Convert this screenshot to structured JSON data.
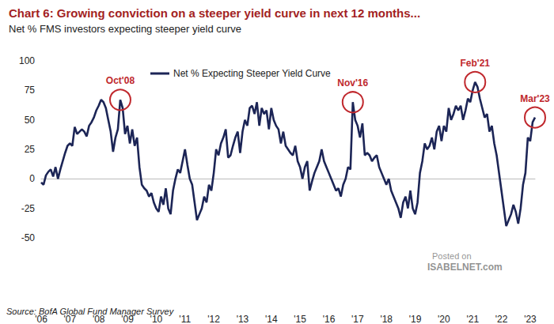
{
  "chart_data": {
    "type": "line",
    "title": "Chart 6: Growing conviction on a steeper yield curve in next 12 months...",
    "subtitle": "Net % FMS investors expecting steeper yield curve",
    "source": "Source: BofA Global Fund Manager Survey",
    "watermark": [
      "Posted on",
      "ISABELNET.com"
    ],
    "categories": [
      "'06",
      null,
      null,
      null,
      null,
      null,
      null,
      null,
      null,
      null,
      null,
      null,
      "'07",
      null,
      null,
      null,
      null,
      null,
      null,
      null,
      null,
      null,
      null,
      null,
      "'08",
      null,
      null,
      null,
      null,
      null,
      null,
      null,
      null,
      null,
      null,
      null,
      "'09",
      null,
      null,
      null,
      null,
      null,
      null,
      null,
      null,
      null,
      null,
      null,
      "'10",
      null,
      null,
      null,
      null,
      null,
      null,
      null,
      null,
      null,
      null,
      null,
      "'11",
      null,
      null,
      null,
      null,
      null,
      null,
      null,
      null,
      null,
      null,
      null,
      "'12",
      null,
      null,
      null,
      null,
      null,
      null,
      null,
      null,
      null,
      null,
      null,
      "'13",
      null,
      null,
      null,
      null,
      null,
      null,
      null,
      null,
      null,
      null,
      null,
      "'14",
      null,
      null,
      null,
      null,
      null,
      null,
      null,
      null,
      null,
      null,
      null,
      "'15",
      null,
      null,
      null,
      null,
      null,
      null,
      null,
      null,
      null,
      null,
      null,
      "'16",
      null,
      null,
      null,
      null,
      null,
      null,
      null,
      null,
      null,
      null,
      null,
      "'17",
      null,
      null,
      null,
      null,
      null,
      null,
      null,
      null,
      null,
      null,
      null,
      "'18",
      null,
      null,
      null,
      null,
      null,
      null,
      null,
      null,
      null,
      null,
      null,
      "'19",
      null,
      null,
      null,
      null,
      null,
      null,
      null,
      null,
      null,
      null,
      null,
      "'20",
      null,
      null,
      null,
      null,
      null,
      null,
      null,
      null,
      null,
      null,
      null,
      "'21",
      null,
      null,
      null,
      null,
      null,
      null,
      null,
      null,
      null,
      null,
      null,
      "'22",
      null,
      null,
      null,
      null,
      null,
      null,
      null,
      null,
      null,
      null,
      null,
      "'23",
      null,
      null
    ],
    "series": [
      {
        "name": "Net % Expecting Steeper Yield Curve",
        "color": "#1c2556",
        "line_style": "solid",
        "values": [
          -3,
          -5,
          3,
          6,
          8,
          2,
          10,
          0,
          8,
          15,
          22,
          28,
          30,
          28,
          44,
          38,
          40,
          42,
          40,
          36,
          45,
          48,
          52,
          58,
          62,
          67,
          65,
          60,
          50,
          40,
          23,
          35,
          42,
          67,
          60,
          38,
          45,
          30,
          42,
          28,
          35,
          10,
          -5,
          -8,
          -10,
          -15,
          -12,
          -20,
          -25,
          -28,
          -15,
          -22,
          -8,
          -25,
          -30,
          -10,
          0,
          8,
          5,
          15,
          25,
          12,
          0,
          -5,
          -20,
          -35,
          -30,
          -25,
          -15,
          -20,
          -5,
          -10,
          5,
          25,
          20,
          30,
          35,
          42,
          18,
          20,
          28,
          35,
          40,
          22,
          40,
          50,
          45,
          60,
          62,
          55,
          65,
          45,
          60,
          55,
          58,
          42,
          60,
          50,
          45,
          42,
          30,
          40,
          28,
          25,
          22,
          20,
          28,
          15,
          10,
          0,
          10,
          15,
          -10,
          -2,
          5,
          10,
          15,
          25,
          15,
          10,
          5,
          0,
          -5,
          -10,
          -8,
          -15,
          -5,
          0,
          10,
          8,
          65,
          50,
          45,
          35,
          47,
          20,
          22,
          20,
          15,
          18,
          20,
          10,
          5,
          0,
          -5,
          0,
          -10,
          -15,
          -20,
          -25,
          -33,
          -20,
          -15,
          -25,
          -10,
          -25,
          -30,
          -20,
          5,
          15,
          30,
          25,
          28,
          35,
          25,
          40,
          45,
          32,
          45,
          40,
          60,
          50,
          55,
          62,
          58,
          62,
          50,
          58,
          68,
          65,
          75,
          82,
          78,
          68,
          60,
          52,
          55,
          40,
          45,
          30,
          20,
          5,
          -10,
          -25,
          -40,
          -35,
          -30,
          -22,
          -28,
          -38,
          -25,
          -5,
          5,
          35,
          32,
          48,
          52
        ]
      }
    ],
    "annotations": [
      {
        "text": "Oct'08",
        "index": 33,
        "value": 67
      },
      {
        "text": "Nov'16",
        "index": 130,
        "value": 65
      },
      {
        "text": "Feb'21",
        "index": 181,
        "value": 82
      },
      {
        "text": "Mar'23",
        "index": 206,
        "value": 52
      }
    ],
    "ylim": [
      -50,
      100
    ],
    "yticks": [
      -50,
      -25,
      0,
      25,
      50,
      75,
      100
    ],
    "grid": false,
    "legend": "upper left"
  }
}
